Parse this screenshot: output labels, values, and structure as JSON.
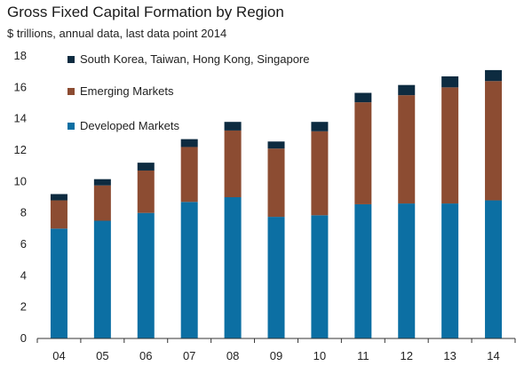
{
  "chart_data": {
    "type": "bar",
    "stacked": true,
    "title": "Gross Fixed Capital Formation by Region",
    "subtitle": "$ trillions, annual data, last data point 2014",
    "xlabel": "",
    "ylabel": "",
    "categories": [
      "04",
      "05",
      "06",
      "07",
      "08",
      "09",
      "10",
      "11",
      "12",
      "13",
      "14"
    ],
    "ylim": [
      0,
      18
    ],
    "yticks": [
      0,
      2,
      4,
      6,
      8,
      10,
      12,
      14,
      16,
      18
    ],
    "grid": false,
    "legend_position": "top-left",
    "series": [
      {
        "name": "Developed Markets",
        "color": "#0c6fa3",
        "values": [
          7.0,
          7.5,
          8.0,
          8.7,
          9.0,
          7.75,
          7.85,
          8.55,
          8.6,
          8.6,
          8.8
        ]
      },
      {
        "name": "Emerging Markets",
        "color": "#8c4c32",
        "values": [
          1.8,
          2.25,
          2.7,
          3.5,
          4.25,
          4.35,
          5.35,
          6.5,
          6.9,
          7.4,
          7.6
        ]
      },
      {
        "name": "South Korea, Taiwan, Hong Kong, Singapore",
        "color": "#0d2b40",
        "values": [
          0.4,
          0.4,
          0.5,
          0.5,
          0.55,
          0.45,
          0.6,
          0.6,
          0.65,
          0.7,
          0.7
        ]
      }
    ],
    "legend_order": [
      "South Korea, Taiwan, Hong Kong, Singapore",
      "Emerging Markets",
      "Developed Markets"
    ]
  }
}
